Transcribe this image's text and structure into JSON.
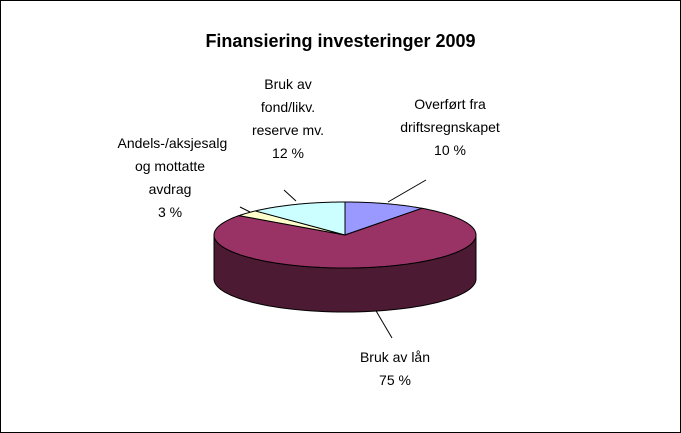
{
  "chart_data": {
    "type": "pie",
    "three_d": true,
    "title": "Finansiering investeringer 2009",
    "categories": [
      "Overført fra driftsregnskapet",
      "Bruk av lån",
      "Andels-/aksjesalg og mottatte avdrag",
      "Bruk av fond/likv. reserve mv."
    ],
    "values": [
      10,
      75,
      3,
      12
    ],
    "value_labels": [
      "10 %",
      "75 %",
      "3 %",
      "12 %"
    ],
    "colors": [
      "#9999ff",
      "#993366",
      "#ffffcc",
      "#ccffff"
    ]
  }
}
